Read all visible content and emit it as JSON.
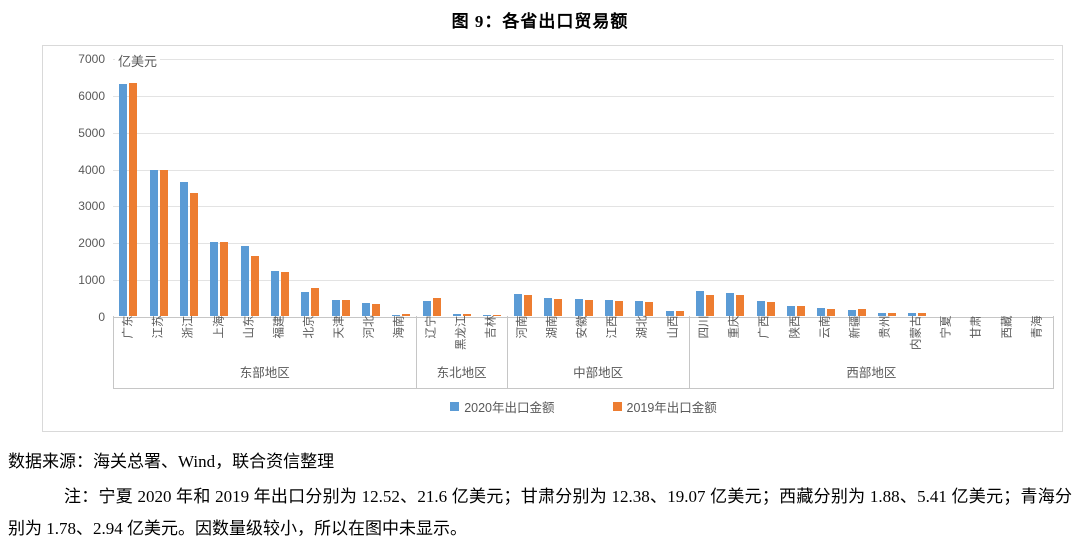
{
  "figure_title": "图 9：各省出口贸易额",
  "source_line": "数据来源：海关总署、Wind，联合资信整理",
  "note_text": "注：宁夏 2020 年和 2019 年出口分别为 12.52、21.6 亿美元；甘肃分别为 12.38、19.07 亿美元；西藏分别为 1.88、5.41 亿美元；青海分别为 1.78、2.94 亿美元。因数量级较小，所以在图中未显示。",
  "colors": {
    "series_2020": "#5B9BD5",
    "series_2019": "#ED7D31",
    "gridline": "#E3E3E3",
    "axis_line": "#C6C6C6",
    "axis_text": "#595959",
    "chart_border": "#D9D9D9"
  },
  "chart_data": {
    "type": "bar",
    "title": "图 9：各省出口贸易额",
    "unit_label": "亿美元",
    "ylabel": "亿美元",
    "xlabel": "",
    "ylim": [
      0,
      7000
    ],
    "yticks": [
      0,
      1000,
      2000,
      3000,
      4000,
      5000,
      6000,
      7000
    ],
    "grid": true,
    "legend_position": "bottom",
    "series_names": [
      "2020年出口金额",
      "2019年出口金额"
    ],
    "series_colors": [
      "#5B9BD5",
      "#ED7D31"
    ],
    "groups": [
      {
        "region": "东部地区",
        "categories": [
          "广东",
          "江苏",
          "浙江",
          "上海",
          "山东",
          "福建",
          "北京",
          "天津",
          "河北",
          "海南"
        ],
        "series": [
          {
            "name": "2020年出口金额",
            "values": [
              6300,
              3970,
              3640,
              2000,
              1900,
              1230,
              660,
              440,
              350,
              35
            ]
          },
          {
            "name": "2019年出口金额",
            "values": [
              6320,
              3950,
              3340,
              2010,
              1620,
              1200,
              750,
              440,
              330,
              60
            ]
          }
        ]
      },
      {
        "region": "东北地区",
        "categories": [
          "辽宁",
          "黑龙江",
          "吉林"
        ],
        "series": [
          {
            "name": "2020年出口金额",
            "values": [
              410,
              60,
              30
            ]
          },
          {
            "name": "2019年出口金额",
            "values": [
              480,
              60,
              35
            ]
          }
        ]
      },
      {
        "region": "中部地区",
        "categories": [
          "河南",
          "湖南",
          "安徽",
          "江西",
          "湖北",
          "山西"
        ],
        "series": [
          {
            "name": "2020年出口金额",
            "values": [
              600,
              480,
              460,
              430,
              420,
              140
            ]
          },
          {
            "name": "2019年出口金额",
            "values": [
              570,
              460,
              440,
              400,
              390,
              125
            ]
          }
        ]
      },
      {
        "region": "西部地区",
        "categories": [
          "四川",
          "重庆",
          "广西",
          "陕西",
          "云南",
          "新疆",
          "贵州",
          "内蒙古",
          "宁夏",
          "甘肃",
          "西藏",
          "青海"
        ],
        "series": [
          {
            "name": "2020年出口金额",
            "values": [
              680,
              630,
              400,
              270,
              225,
              165,
              75,
              75,
              12.52,
              12.38,
              1.88,
              1.78
            ]
          },
          {
            "name": "2019年出口金额",
            "values": [
              570,
              560,
              390,
              260,
              180,
              195,
              70,
              70,
              21.6,
              19.07,
              5.41,
              2.94
            ]
          }
        ]
      }
    ],
    "note": "宁夏、甘肃、西藏、青海因数量级较小，在图中未显示"
  }
}
